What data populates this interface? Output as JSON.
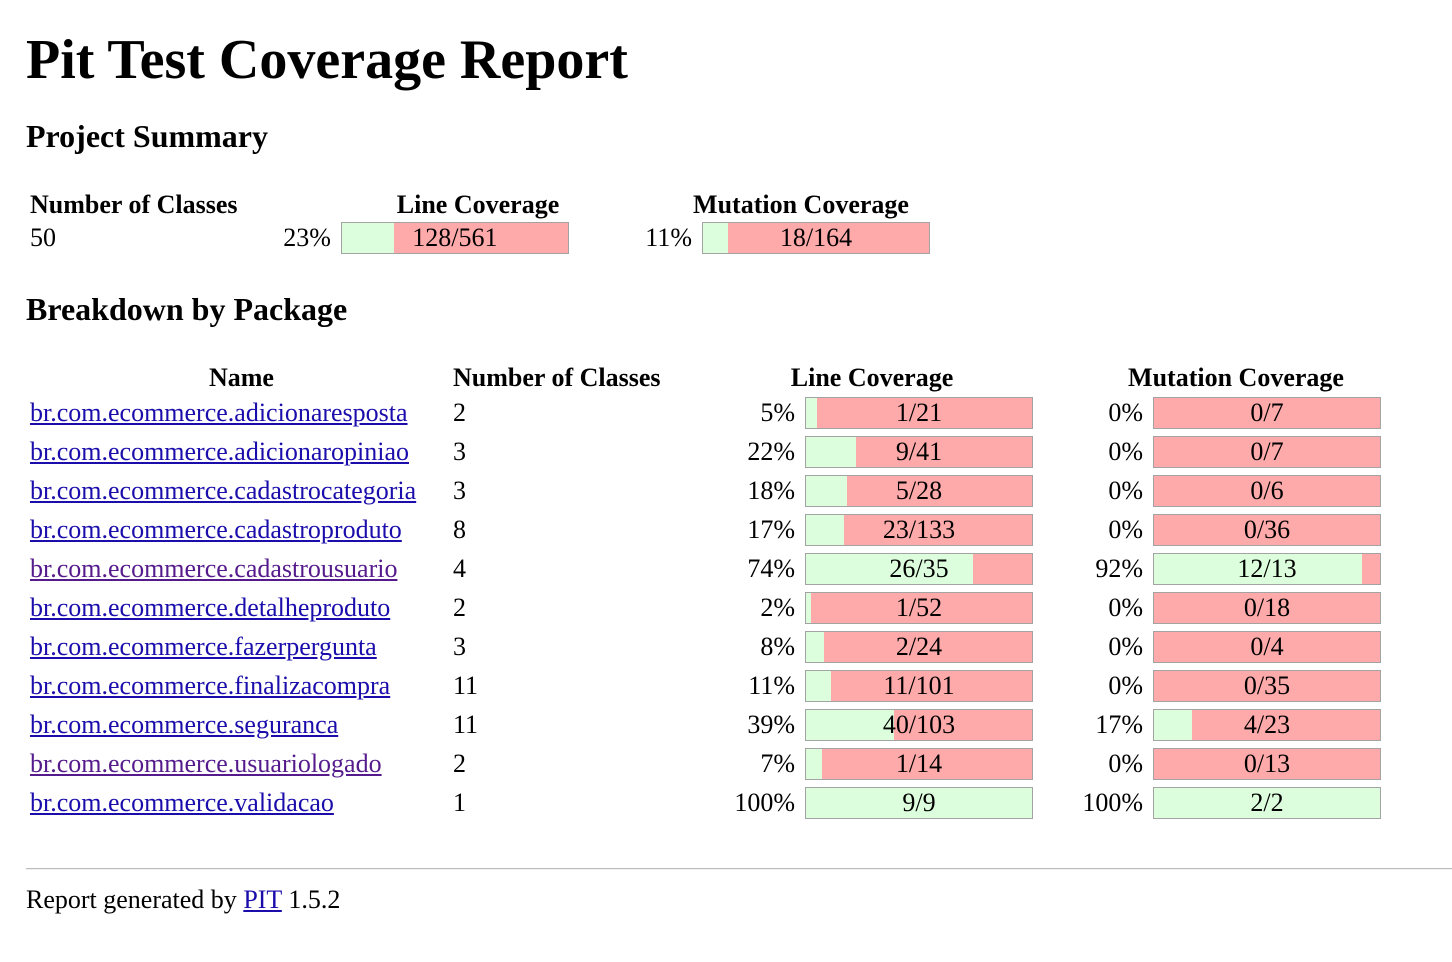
{
  "title": "Pit Test Coverage Report",
  "summary": {
    "heading": "Project Summary",
    "headers": {
      "classes": "Number of Classes",
      "line": "Line Coverage",
      "mutation": "Mutation Coverage"
    },
    "classes": "50",
    "line_pct": "23%",
    "line_legend": "128/561",
    "line_fraction": 0.23,
    "mutation_pct": "11%",
    "mutation_legend": "18/164",
    "mutation_fraction": 0.11
  },
  "breakdown": {
    "heading": "Breakdown by Package",
    "headers": {
      "name": "Name",
      "classes": "Number of Classes",
      "line": "Line Coverage",
      "mutation": "Mutation Coverage"
    },
    "packages": [
      {
        "name": "br.com.ecommerce.adicionaresposta",
        "visited": false,
        "classes": "2",
        "line_pct": "5%",
        "line_legend": "1/21",
        "line_fraction": 0.05,
        "mut_pct": "0%",
        "mut_legend": "0/7",
        "mut_fraction": 0
      },
      {
        "name": "br.com.ecommerce.adicionaropiniao",
        "visited": false,
        "classes": "3",
        "line_pct": "22%",
        "line_legend": "9/41",
        "line_fraction": 0.22,
        "mut_pct": "0%",
        "mut_legend": "0/7",
        "mut_fraction": 0
      },
      {
        "name": "br.com.ecommerce.cadastrocategoria",
        "visited": false,
        "classes": "3",
        "line_pct": "18%",
        "line_legend": "5/28",
        "line_fraction": 0.18,
        "mut_pct": "0%",
        "mut_legend": "0/6",
        "mut_fraction": 0
      },
      {
        "name": "br.com.ecommerce.cadastroproduto",
        "visited": false,
        "classes": "8",
        "line_pct": "17%",
        "line_legend": "23/133",
        "line_fraction": 0.17,
        "mut_pct": "0%",
        "mut_legend": "0/36",
        "mut_fraction": 0
      },
      {
        "name": "br.com.ecommerce.cadastrousuario",
        "visited": true,
        "classes": "4",
        "line_pct": "74%",
        "line_legend": "26/35",
        "line_fraction": 0.74,
        "mut_pct": "92%",
        "mut_legend": "12/13",
        "mut_fraction": 0.92
      },
      {
        "name": "br.com.ecommerce.detalheproduto",
        "visited": false,
        "classes": "2",
        "line_pct": "2%",
        "line_legend": "1/52",
        "line_fraction": 0.02,
        "mut_pct": "0%",
        "mut_legend": "0/18",
        "mut_fraction": 0
      },
      {
        "name": "br.com.ecommerce.fazerpergunta",
        "visited": false,
        "classes": "3",
        "line_pct": "8%",
        "line_legend": "2/24",
        "line_fraction": 0.08,
        "mut_pct": "0%",
        "mut_legend": "0/4",
        "mut_fraction": 0
      },
      {
        "name": "br.com.ecommerce.finalizacompra",
        "visited": false,
        "classes": "11",
        "line_pct": "11%",
        "line_legend": "11/101",
        "line_fraction": 0.11,
        "mut_pct": "0%",
        "mut_legend": "0/35",
        "mut_fraction": 0
      },
      {
        "name": "br.com.ecommerce.seguranca",
        "visited": false,
        "classes": "11",
        "line_pct": "39%",
        "line_legend": "40/103",
        "line_fraction": 0.39,
        "mut_pct": "17%",
        "mut_legend": "4/23",
        "mut_fraction": 0.17
      },
      {
        "name": "br.com.ecommerce.usuariologado",
        "visited": true,
        "classes": "2",
        "line_pct": "7%",
        "line_legend": "1/14",
        "line_fraction": 0.07,
        "mut_pct": "0%",
        "mut_legend": "0/13",
        "mut_fraction": 0
      },
      {
        "name": "br.com.ecommerce.validacao",
        "visited": false,
        "classes": "1",
        "line_pct": "100%",
        "line_legend": "9/9",
        "line_fraction": 1.0,
        "mut_pct": "100%",
        "mut_legend": "2/2",
        "mut_fraction": 1.0
      }
    ]
  },
  "footer": {
    "prefix": "Report generated by",
    "link": "PIT",
    "version": "1.5.2"
  },
  "colors": {
    "covered": "#ddfedd",
    "uncovered": "#ffaaaa",
    "link": "#1a0dab",
    "visited_link": "#551a8b"
  }
}
